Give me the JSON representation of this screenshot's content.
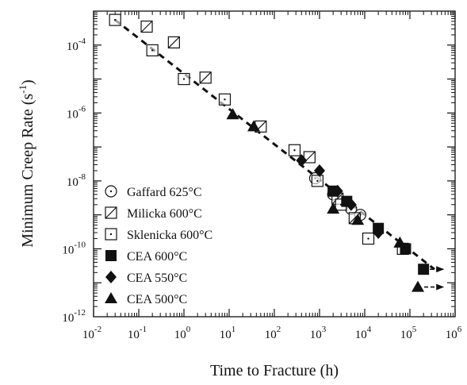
{
  "chart_data": {
    "type": "scatter",
    "title": "",
    "xlabel": "Time to Fracture (h)",
    "ylabel_main": "Minimum Creep Rate (s",
    "ylabel_exp": "-1",
    "ylabel_close": ")",
    "x_scale": "log",
    "y_scale": "log",
    "xlim": [
      0.01,
      1000000
    ],
    "ylim": [
      1e-12,
      0.001
    ],
    "grid": false,
    "legend_position": "lower-left",
    "x_ticks": [
      {
        "base": "10",
        "exp": "-2",
        "value": 0.01
      },
      {
        "base": "10",
        "exp": "-1",
        "value": 0.1
      },
      {
        "base": "10",
        "exp": "0",
        "value": 1
      },
      {
        "base": "10",
        "exp": "1",
        "value": 10
      },
      {
        "base": "10",
        "exp": "2",
        "value": 100
      },
      {
        "base": "10",
        "exp": "3",
        "value": 1000
      },
      {
        "base": "10",
        "exp": "4",
        "value": 10000
      },
      {
        "base": "10",
        "exp": "5",
        "value": 100000
      },
      {
        "base": "10",
        "exp": "6",
        "value": 1000000
      }
    ],
    "y_ticks": [
      {
        "base": "10",
        "exp": "-4",
        "value": 0.0001
      },
      {
        "base": "10",
        "exp": "-6",
        "value": 1e-06
      },
      {
        "base": "10",
        "exp": "-8",
        "value": 1e-08
      },
      {
        "base": "10",
        "exp": "-10",
        "value": 1e-10
      },
      {
        "base": "10",
        "exp": "-12",
        "value": 1e-12
      }
    ],
    "fit_line": {
      "style": "dashed",
      "points": [
        [
          0.03,
          0.00055
        ],
        [
          350000,
          2.5e-11
        ]
      ]
    },
    "series": [
      {
        "name": "Gaffard 625°C",
        "marker": "open-circle-dot",
        "points": [
          [
            800,
            1.2e-08
          ],
          [
            2000,
            4e-09
          ],
          [
            5000,
            1.5e-09
          ],
          [
            8000,
            1e-09
          ]
        ]
      },
      {
        "name": "Milicka 600°C",
        "marker": "open-square-slash",
        "points": [
          [
            0.15,
            0.00035
          ],
          [
            0.6,
            0.00012
          ],
          [
            3,
            1.1e-05
          ],
          [
            50,
            4e-07
          ],
          [
            600,
            5e-08
          ],
          [
            2500,
            3e-09
          ],
          [
            6000,
            8e-10
          ]
        ]
      },
      {
        "name": "Sklenicka 600°C",
        "marker": "open-square-dot",
        "points": [
          [
            0.03,
            0.00055
          ],
          [
            0.2,
            7e-05
          ],
          [
            1,
            1e-05
          ],
          [
            8,
            2.5e-06
          ],
          [
            280,
            8e-08
          ],
          [
            900,
            1e-08
          ],
          [
            3000,
            2e-09
          ],
          [
            12000,
            2e-10
          ],
          [
            70000,
            1e-10
          ]
        ]
      },
      {
        "name": "CEA 600°C",
        "marker": "filled-square",
        "points": [
          [
            2000,
            5e-09
          ],
          [
            4000,
            2.5e-09
          ],
          [
            20000,
            4e-10
          ],
          [
            80000,
            1e-10
          ],
          [
            200000,
            2.5e-11
          ]
        ]
      },
      {
        "name": "CEA 550°C",
        "marker": "filled-diamond",
        "points": [
          [
            400,
            4e-08
          ],
          [
            1000,
            2e-08
          ],
          [
            2500,
            5e-09
          ],
          [
            5000,
            2e-09
          ],
          [
            20000,
            3e-10
          ]
        ]
      },
      {
        "name": "CEA 500°C",
        "marker": "filled-triangle",
        "points": [
          [
            12,
            9e-07
          ],
          [
            35,
            4e-07
          ],
          [
            2000,
            1.5e-09
          ],
          [
            7000,
            7e-10
          ],
          [
            60000,
            1.5e-10
          ],
          [
            150000,
            7.5e-12
          ]
        ]
      }
    ],
    "runout_arrows": [
      {
        "from": [
          200000,
          2.5e-11
        ],
        "to": [
          550000,
          2.5e-11
        ]
      },
      {
        "from": [
          150000,
          7.5e-12
        ],
        "to": [
          550000,
          7.5e-12
        ]
      }
    ]
  }
}
